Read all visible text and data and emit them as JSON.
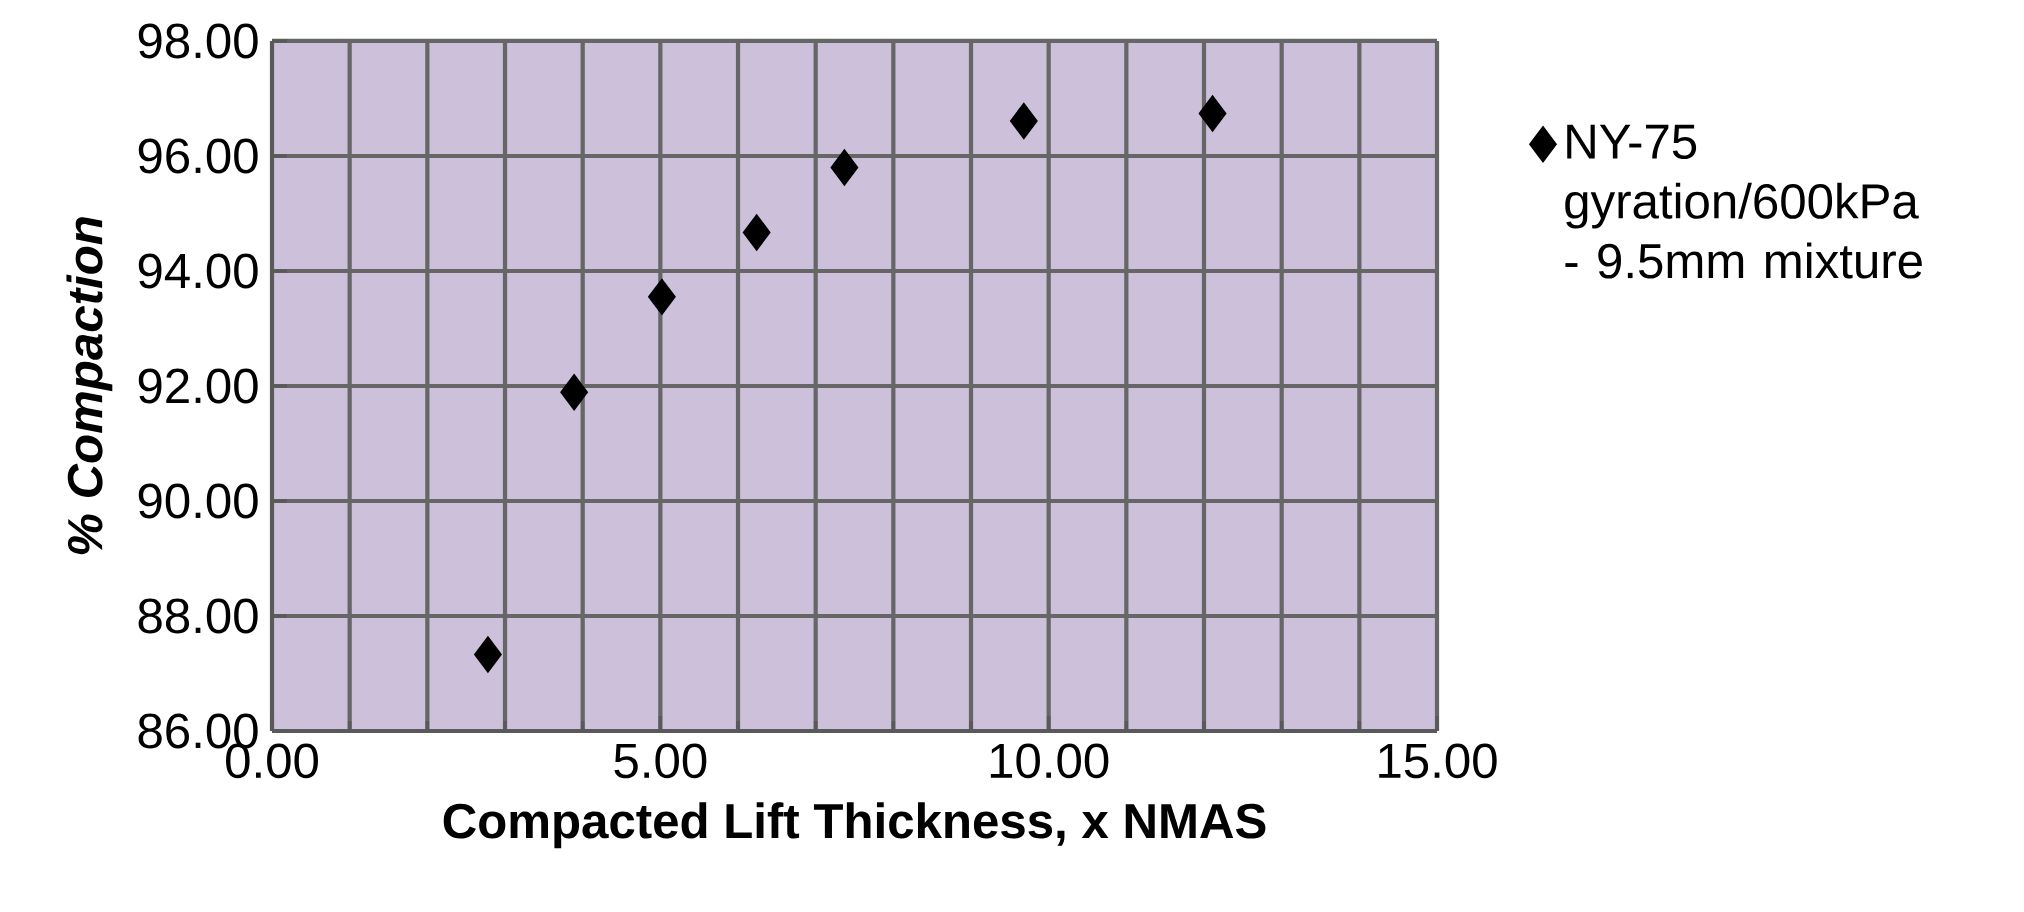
{
  "chart_data": {
    "type": "scatter",
    "xlabel": "Compacted Lift Thickness, x NMAS",
    "ylabel": "% Compaction",
    "series": [
      {
        "name": "NY-75 gyration/600kPa - 9.5mm mixture",
        "color": "#000000",
        "x": [
          2.78,
          3.89,
          5.02,
          6.24,
          7.37,
          9.68,
          12.11
        ],
        "values": [
          87.33,
          91.89,
          93.55,
          94.67,
          95.8,
          96.61,
          96.74
        ]
      }
    ],
    "xlim": [
      0,
      15
    ],
    "ylim": [
      86,
      98
    ],
    "xticks": [
      {
        "value": 0,
        "label": "0.00"
      },
      {
        "value": 5,
        "label": "5.00"
      },
      {
        "value": 10,
        "label": "10.00"
      },
      {
        "value": 15,
        "label": "15.00"
      }
    ],
    "yticks": [
      {
        "value": 86,
        "label": "86.00"
      },
      {
        "value": 88,
        "label": "88.00"
      },
      {
        "value": 90,
        "label": "90.00"
      },
      {
        "value": 92,
        "label": "92.00"
      },
      {
        "value": 94,
        "label": "94.00"
      },
      {
        "value": 96,
        "label": "96.00"
      },
      {
        "value": 98,
        "label": "98.00"
      }
    ],
    "grid": true,
    "legend": "right",
    "marker": "diamond"
  }
}
